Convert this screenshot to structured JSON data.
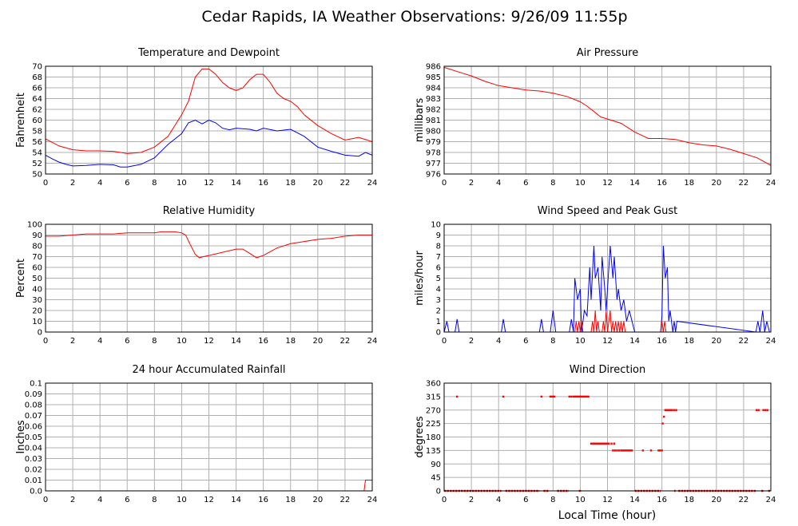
{
  "title": "Cedar Rapids, IA Weather Observations: 9/26/09 11:55p",
  "xlabel": "Local Time (hour)",
  "chart_data": [
    {
      "id": "temp",
      "type": "line",
      "title": "Temperature and Dewpoint",
      "ylabel": "Fahrenheit",
      "xlim": [
        0,
        24
      ],
      "ylim": [
        50,
        70
      ],
      "xticks": [
        0,
        2,
        4,
        6,
        8,
        10,
        12,
        14,
        16,
        18,
        20,
        22,
        24
      ],
      "yticks": [
        50,
        52,
        54,
        56,
        58,
        60,
        62,
        64,
        66,
        68,
        70
      ],
      "grid": true,
      "series": [
        {
          "color": "#ff0000",
          "x": [
            0,
            1,
            2,
            3,
            4,
            5,
            6,
            7,
            8,
            9,
            10,
            10.5,
            11,
            11.5,
            12,
            12.5,
            13,
            13.5,
            14,
            14.5,
            15,
            15.5,
            16,
            16.5,
            17,
            17.5,
            18,
            18.5,
            19,
            20,
            21,
            22,
            23,
            24
          ],
          "y": [
            56.5,
            55.2,
            54.5,
            54.3,
            54.3,
            54.2,
            53.8,
            54.0,
            55.0,
            57.0,
            61.0,
            63.5,
            68.0,
            69.5,
            69.5,
            68.5,
            67.0,
            66.0,
            65.5,
            66.0,
            67.5,
            68.5,
            68.5,
            67.0,
            65.0,
            64.0,
            63.5,
            62.5,
            61.0,
            59.0,
            57.5,
            56.3,
            56.8,
            56.0
          ]
        },
        {
          "color": "#0000ff",
          "x": [
            0,
            0.5,
            1,
            1.5,
            2,
            3,
            4,
            5,
            5.5,
            6,
            7,
            8,
            9,
            9.5,
            10,
            10.5,
            11,
            11.5,
            12,
            12.5,
            13,
            13.5,
            14,
            15,
            15.5,
            16,
            17,
            18,
            19,
            20,
            21,
            22,
            23,
            23.5,
            24
          ],
          "y": [
            53.5,
            52.8,
            52.2,
            51.8,
            51.5,
            51.6,
            51.8,
            51.7,
            51.3,
            51.3,
            51.8,
            53.0,
            55.5,
            56.5,
            57.5,
            59.5,
            60.0,
            59.3,
            60.0,
            59.5,
            58.5,
            58.2,
            58.5,
            58.3,
            58.0,
            58.5,
            58.0,
            58.3,
            57.0,
            55.0,
            54.2,
            53.5,
            53.3,
            54.0,
            53.5
          ]
        }
      ]
    },
    {
      "id": "pressure",
      "type": "line",
      "title": "Air Pressure",
      "ylabel": "millibars",
      "xlim": [
        0,
        24
      ],
      "ylim": [
        976,
        986
      ],
      "xticks": [
        0,
        2,
        4,
        6,
        8,
        10,
        12,
        14,
        16,
        18,
        20,
        22,
        24
      ],
      "yticks": [
        976,
        977,
        978,
        979,
        980,
        981,
        982,
        983,
        984,
        985,
        986
      ],
      "grid": true,
      "series": [
        {
          "color": "#ff0000",
          "x": [
            0,
            1,
            2,
            3,
            4,
            5,
            6,
            7,
            8,
            9,
            10,
            10.5,
            11,
            11.5,
            12,
            13,
            14,
            14.5,
            15,
            16,
            17,
            18,
            19,
            20,
            21,
            22,
            23,
            24
          ],
          "y": [
            985.9,
            985.5,
            985.1,
            984.6,
            984.2,
            984.0,
            983.8,
            983.7,
            983.5,
            983.2,
            982.7,
            982.3,
            981.8,
            981.3,
            981.1,
            980.7,
            979.9,
            979.6,
            979.3,
            979.3,
            979.2,
            978.9,
            978.7,
            978.6,
            978.3,
            977.9,
            977.5,
            976.8
          ]
        }
      ]
    },
    {
      "id": "humidity",
      "type": "line",
      "title": "Relative Humidity",
      "ylabel": "Percent",
      "xlim": [
        0,
        24
      ],
      "ylim": [
        0,
        100
      ],
      "xticks": [
        0,
        2,
        4,
        6,
        8,
        10,
        12,
        14,
        16,
        18,
        20,
        22,
        24
      ],
      "yticks": [
        0,
        10,
        20,
        30,
        40,
        50,
        60,
        70,
        80,
        90,
        100
      ],
      "grid": true,
      "series": [
        {
          "color": "#ff0000",
          "x": [
            0,
            1,
            2,
            3,
            4,
            5,
            6,
            7,
            8,
            8.5,
            9,
            9.5,
            10,
            10.3,
            10.6,
            11,
            11.3,
            11.6,
            12,
            13,
            14,
            14.5,
            15,
            15.5,
            16,
            17,
            18,
            19,
            20,
            21,
            22,
            23,
            24
          ],
          "y": [
            89,
            89,
            90,
            91,
            91,
            91,
            92,
            92,
            92,
            93,
            93,
            93,
            92,
            90,
            82,
            72,
            69,
            70,
            71,
            74,
            77,
            77,
            73,
            69,
            71,
            78,
            82,
            84,
            86,
            87,
            89,
            90,
            90
          ]
        }
      ]
    },
    {
      "id": "wind",
      "type": "line",
      "title": "Wind Speed and Peak Gust",
      "ylabel": "miles/hour",
      "xlim": [
        0,
        24
      ],
      "ylim": [
        0,
        10
      ],
      "xticks": [
        0,
        2,
        4,
        6,
        8,
        10,
        12,
        14,
        16,
        18,
        20,
        22,
        24
      ],
      "yticks": [
        0,
        1,
        2,
        3,
        4,
        5,
        6,
        7,
        8,
        9,
        10
      ],
      "grid": true,
      "series": [
        {
          "color": "#0000ff",
          "x": [
            0,
            0.2,
            0.35,
            0.8,
            0.95,
            1.1,
            4.2,
            4.35,
            4.5,
            7.0,
            7.15,
            7.3,
            7.8,
            8.0,
            8.2,
            9.2,
            9.35,
            9.5,
            9.6,
            9.8,
            10.0,
            10.1,
            10.3,
            10.5,
            10.7,
            10.8,
            11.0,
            11.1,
            11.3,
            11.5,
            11.6,
            11.8,
            11.9,
            12.1,
            12.2,
            12.4,
            12.5,
            12.7,
            12.8,
            13.0,
            13.2,
            13.4,
            13.6,
            13.8,
            14.0,
            15.9,
            16.0,
            16.1,
            16.25,
            16.4,
            16.5,
            16.6,
            16.8,
            16.9,
            17.0,
            17.1,
            22.9,
            23.05,
            23.2,
            23.4,
            23.55,
            23.7,
            23.9
          ],
          "y": [
            0,
            1,
            0,
            0,
            1.2,
            0,
            0,
            1.2,
            0,
            0,
            1.2,
            0,
            0,
            2,
            0,
            0,
            1.2,
            0,
            5,
            3,
            4,
            0,
            2,
            1.5,
            6,
            3,
            8,
            5,
            6,
            2,
            7,
            4,
            2,
            6,
            8,
            5,
            7,
            3,
            4,
            2,
            3,
            1,
            2,
            1,
            0,
            0,
            1.5,
            8,
            5,
            6,
            1,
            2,
            0,
            1,
            0,
            1,
            0,
            1,
            0,
            2,
            0,
            1,
            0
          ]
        },
        {
          "color": "#ff0000",
          "x": [
            0,
            9.6,
            9.7,
            9.8,
            9.9,
            10.0,
            10.1,
            10.2,
            10.8,
            10.9,
            11.0,
            11.1,
            11.2,
            11.3,
            11.4,
            11.6,
            11.7,
            11.8,
            11.9,
            12.0,
            12.1,
            12.2,
            12.3,
            12.4,
            12.5,
            12.6,
            12.7,
            12.8,
            12.9,
            13.0,
            13.1,
            13.2,
            13.3,
            15.9,
            16.0,
            16.1,
            16.2,
            16.3,
            16.4,
            24
          ],
          "y": [
            0,
            0,
            1,
            0,
            1,
            0,
            1,
            0,
            0,
            1,
            0,
            2,
            0,
            1,
            0,
            0,
            1,
            0,
            2,
            0,
            1,
            2,
            0,
            1,
            0,
            1,
            0,
            1,
            0,
            1,
            0,
            1,
            0,
            0,
            1,
            0,
            1,
            0,
            0,
            0
          ]
        }
      ]
    },
    {
      "id": "rain",
      "type": "line",
      "title": "24 hour Accumulated Rainfall",
      "ylabel": "Inches",
      "xlim": [
        0,
        24
      ],
      "ylim": [
        0,
        0.1
      ],
      "xticks": [
        0,
        2,
        4,
        6,
        8,
        10,
        12,
        14,
        16,
        18,
        20,
        22,
        24
      ],
      "yticks": [
        0.0,
        0.01,
        0.02,
        0.03,
        0.04,
        0.05,
        0.06,
        0.07,
        0.08,
        0.09,
        0.1
      ],
      "ytick_labels": [
        "0.0",
        "0.01",
        "0.02",
        "0.03",
        "0.04",
        "0.05",
        "0.06",
        "0.07",
        "0.08",
        "0.09",
        "0.1"
      ],
      "grid": true,
      "series": [
        {
          "color": "#ff0000",
          "x": [
            0,
            23.4,
            23.5,
            24
          ],
          "y": [
            0,
            0,
            0.01,
            0.01
          ]
        }
      ]
    },
    {
      "id": "direction",
      "type": "scatter",
      "title": "Wind Direction",
      "ylabel": "degrees",
      "xlim": [
        0,
        24
      ],
      "ylim": [
        0,
        360
      ],
      "xticks": [
        0,
        2,
        4,
        6,
        8,
        10,
        12,
        14,
        16,
        18,
        20,
        22,
        24
      ],
      "yticks": [
        0,
        45,
        90,
        135,
        180,
        225,
        270,
        315,
        360
      ],
      "grid": true,
      "color": "#ff0000",
      "points": [
        [
          0.95,
          315
        ],
        [
          4.35,
          315
        ],
        [
          7.15,
          315
        ],
        [
          7.8,
          315
        ],
        [
          7.9,
          315
        ],
        [
          8.0,
          315
        ],
        [
          8.1,
          315
        ],
        [
          9.2,
          315
        ],
        [
          9.35,
          315
        ],
        [
          9.5,
          315
        ],
        [
          9.6,
          315
        ],
        [
          9.7,
          315
        ],
        [
          9.8,
          315
        ],
        [
          9.9,
          315
        ],
        [
          10.0,
          315
        ],
        [
          10.1,
          315
        ],
        [
          10.2,
          315
        ],
        [
          10.3,
          315
        ],
        [
          10.4,
          315
        ],
        [
          10.5,
          315
        ],
        [
          10.6,
          315
        ],
        [
          10.8,
          158
        ],
        [
          10.9,
          158
        ],
        [
          11.0,
          158
        ],
        [
          11.1,
          158
        ],
        [
          11.2,
          158
        ],
        [
          11.3,
          158
        ],
        [
          11.4,
          158
        ],
        [
          11.5,
          158
        ],
        [
          11.6,
          158
        ],
        [
          11.7,
          158
        ],
        [
          11.8,
          158
        ],
        [
          11.9,
          158
        ],
        [
          12.0,
          158
        ],
        [
          12.1,
          158
        ],
        [
          12.3,
          158
        ],
        [
          12.5,
          158
        ],
        [
          12.4,
          135
        ],
        [
          12.55,
          135
        ],
        [
          12.7,
          135
        ],
        [
          12.85,
          135
        ],
        [
          13.0,
          135
        ],
        [
          13.1,
          135
        ],
        [
          13.2,
          135
        ],
        [
          13.3,
          135
        ],
        [
          13.4,
          135
        ],
        [
          13.5,
          135
        ],
        [
          13.6,
          135
        ],
        [
          13.7,
          135
        ],
        [
          13.8,
          135
        ],
        [
          14.6,
          135
        ],
        [
          15.2,
          135
        ],
        [
          15.75,
          135
        ],
        [
          15.85,
          135
        ],
        [
          16.0,
          135
        ],
        [
          16.05,
          225
        ],
        [
          16.15,
          248
        ],
        [
          16.25,
          270
        ],
        [
          16.35,
          270
        ],
        [
          16.45,
          270
        ],
        [
          16.55,
          270
        ],
        [
          16.65,
          270
        ],
        [
          16.75,
          270
        ],
        [
          16.9,
          270
        ],
        [
          17.05,
          270
        ],
        [
          22.95,
          270
        ],
        [
          23.1,
          270
        ],
        [
          23.45,
          270
        ],
        [
          23.6,
          270
        ],
        [
          23.75,
          270
        ]
      ],
      "calm_segments": [
        [
          0,
          4.2
        ],
        [
          4.5,
          7.0
        ],
        [
          7.3,
          7.7
        ],
        [
          8.3,
          9.15
        ],
        [
          9.9,
          10.05
        ],
        [
          14.0,
          15.9
        ],
        [
          16.9,
          17.0
        ],
        [
          17.2,
          22.9
        ],
        [
          23.3,
          23.5
        ],
        [
          23.8,
          24
        ]
      ]
    }
  ]
}
